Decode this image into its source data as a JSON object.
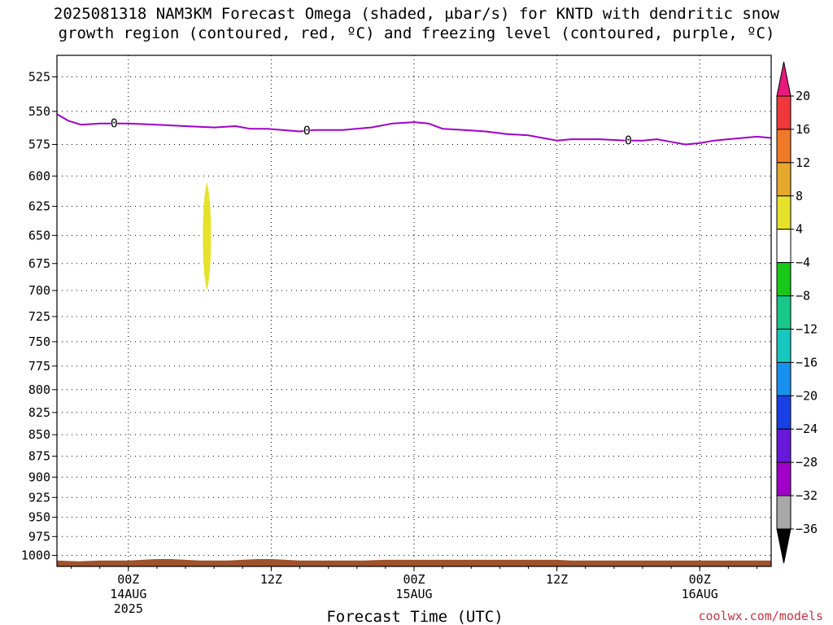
{
  "title_line1": "2025081318 NAM3KM Forecast Omega (shaded, μbar/s) for KNTD with dendritic snow",
  "title_line2": "growth region (contoured, red, ºC) and freezing level (contoured, purple, ºC)",
  "credit": "coolwx.com/models",
  "chart_data": {
    "type": "time-height",
    "xlabel": "Forecast Time (UTC)",
    "ylabel": "",
    "y_axis": {
      "scale": "log-pressure",
      "reversed": true,
      "ticks": [
        525,
        550,
        575,
        600,
        625,
        650,
        675,
        700,
        725,
        750,
        775,
        800,
        825,
        850,
        875,
        900,
        925,
        950,
        975,
        1000
      ],
      "range": [
        510,
        1015
      ]
    },
    "x_axis": {
      "range_hours": [
        -5,
        45
      ],
      "ticks": [
        {
          "hour": 0,
          "label": "00Z",
          "sub1": "14AUG",
          "sub2": "2025"
        },
        {
          "hour": 10,
          "label": "12Z",
          "sub1": "",
          "sub2": ""
        },
        {
          "hour": 20,
          "label": "00Z",
          "sub1": "15AUG",
          "sub2": ""
        },
        {
          "hour": 30,
          "label": "12Z",
          "sub1": "",
          "sub2": ""
        },
        {
          "hour": 40,
          "label": "00Z",
          "sub1": "16AUG",
          "sub2": ""
        }
      ]
    },
    "grid": true,
    "freezing_level": {
      "label": "0",
      "color": "#a000c8",
      "points": [
        [
          -5,
          552
        ],
        [
          -4.2,
          557
        ],
        [
          -3.3,
          560
        ],
        [
          -2,
          559
        ],
        [
          0,
          559
        ],
        [
          2,
          560
        ],
        [
          4,
          561
        ],
        [
          6,
          562
        ],
        [
          7.5,
          561
        ],
        [
          8.5,
          563
        ],
        [
          9.7,
          563
        ],
        [
          10.8,
          564
        ],
        [
          12,
          565
        ],
        [
          13,
          564
        ],
        [
          15,
          564
        ],
        [
          17,
          562
        ],
        [
          18.5,
          559
        ],
        [
          20,
          558
        ],
        [
          21,
          559
        ],
        [
          22,
          563
        ],
        [
          23.5,
          564
        ],
        [
          25,
          565
        ],
        [
          26.5,
          567
        ],
        [
          28,
          568
        ],
        [
          29,
          570
        ],
        [
          30,
          572
        ],
        [
          31,
          571
        ],
        [
          33,
          571
        ],
        [
          34.8,
          572
        ],
        [
          36,
          572
        ],
        [
          37,
          571
        ],
        [
          38,
          573
        ],
        [
          39,
          575
        ],
        [
          40,
          574
        ],
        [
          41,
          572
        ],
        [
          43,
          570
        ],
        [
          44,
          569
        ],
        [
          45,
          570
        ]
      ],
      "contour_labels_at_hours": [
        -1,
        12.5,
        35
      ]
    },
    "omega_shading": [
      {
        "hour": 5.5,
        "p_top": 605,
        "p_bottom": 700,
        "value_range": [
          4,
          8
        ],
        "color": "#e6e22c"
      }
    ],
    "terrain": {
      "color": "#a0522d",
      "points": [
        [
          -5,
          1007
        ],
        [
          -3.5,
          1008
        ],
        [
          -2,
          1007
        ],
        [
          0,
          1007
        ],
        [
          1,
          1006
        ],
        [
          2,
          1005
        ],
        [
          3,
          1005
        ],
        [
          4,
          1006
        ],
        [
          5,
          1007
        ],
        [
          7,
          1007
        ],
        [
          8,
          1006
        ],
        [
          9,
          1005
        ],
        [
          10,
          1005
        ],
        [
          11,
          1006
        ],
        [
          12,
          1007
        ],
        [
          15,
          1007
        ],
        [
          16.5,
          1007
        ],
        [
          18,
          1006
        ],
        [
          20,
          1006
        ],
        [
          22,
          1006
        ],
        [
          24,
          1006
        ],
        [
          26,
          1006
        ],
        [
          28,
          1006
        ],
        [
          30,
          1006
        ],
        [
          31,
          1007
        ],
        [
          33,
          1007
        ],
        [
          35,
          1007
        ],
        [
          38,
          1007
        ],
        [
          42,
          1007
        ],
        [
          45,
          1007
        ]
      ]
    },
    "colorbar": {
      "labels": [
        "20",
        "16",
        "12",
        "8",
        "4",
        "−4",
        "−8",
        "−12",
        "−16",
        "−20",
        "−24",
        "−28",
        "−32",
        "−36"
      ],
      "upper_arrow_color": "#e8197c",
      "lower_arrow_color": "#000000",
      "bins": [
        {
          "color": "#f0383c"
        },
        {
          "color": "#f07a28"
        },
        {
          "color": "#e6a82c"
        },
        {
          "color": "#e6e22c"
        },
        {
          "color": "#ffffff"
        },
        {
          "color": "#18c818"
        },
        {
          "color": "#18c88a"
        },
        {
          "color": "#18c8c0"
        },
        {
          "color": "#1890f0"
        },
        {
          "color": "#1840e6"
        },
        {
          "color": "#6818d8"
        },
        {
          "color": "#a000c8"
        },
        {
          "color": "#a8a8a8"
        }
      ]
    }
  }
}
